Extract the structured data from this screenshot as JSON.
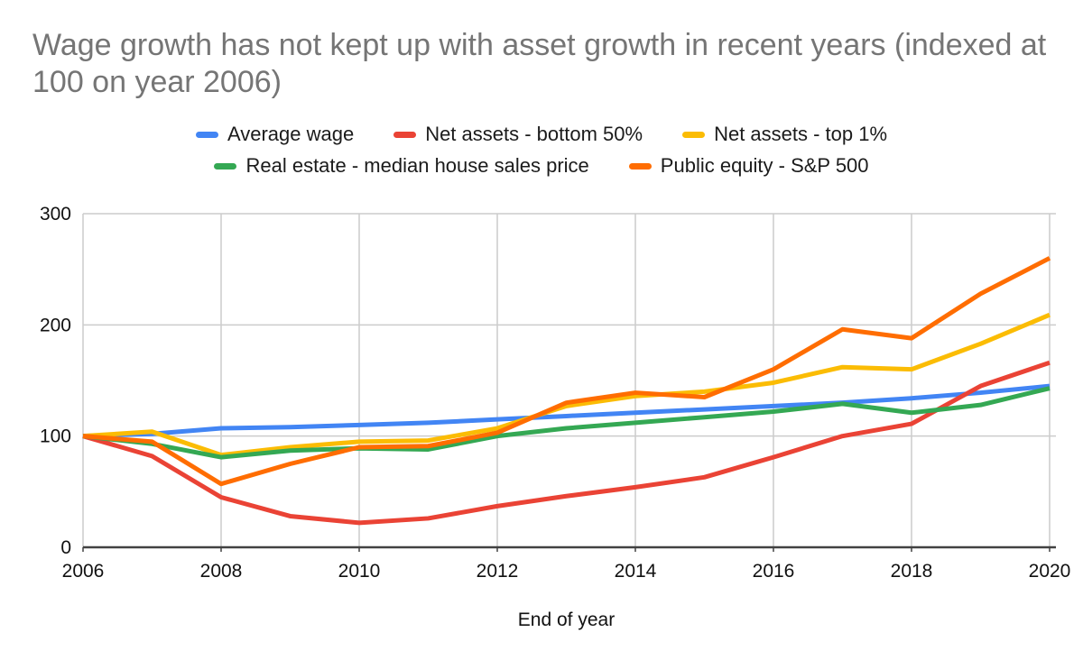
{
  "title": "Wage growth has not kept up with asset growth in recent years (indexed at 100 on year 2006)",
  "x_axis_title": "End of year",
  "chart_data": {
    "type": "line",
    "title": "Wage growth has not kept up with asset growth in recent years (indexed at 100 on year 2006)",
    "xlabel": "End of year",
    "ylabel": "",
    "xlim": [
      2006,
      2020
    ],
    "ylim": [
      0,
      300
    ],
    "grid": true,
    "legend_position": "top",
    "x": [
      2006,
      2007,
      2008,
      2009,
      2010,
      2011,
      2012,
      2013,
      2014,
      2015,
      2016,
      2017,
      2018,
      2019,
      2020
    ],
    "x_tick_labels": [
      "2006",
      "2008",
      "2010",
      "2012",
      "2014",
      "2016",
      "2018",
      "2020"
    ],
    "y_ticks": [
      0,
      100,
      200,
      300
    ],
    "series": [
      {
        "name": "Average wage",
        "color": "#4285F4",
        "values": [
          100,
          102,
          107,
          108,
          110,
          112,
          115,
          118,
          121,
          124,
          127,
          130,
          134,
          139,
          145
        ]
      },
      {
        "name": "Net assets - bottom 50%",
        "color": "#EA4335",
        "values": [
          100,
          82,
          45,
          28,
          22,
          26,
          37,
          46,
          54,
          63,
          81,
          100,
          111,
          145,
          166
        ]
      },
      {
        "name": "Net assets - top 1%",
        "color": "#FBBC04",
        "values": [
          100,
          104,
          83,
          90,
          95,
          96,
          107,
          127,
          136,
          140,
          148,
          162,
          160,
          183,
          209
        ]
      },
      {
        "name": "Real estate - median house sales price",
        "color": "#34A853",
        "values": [
          100,
          93,
          81,
          87,
          89,
          88,
          100,
          107,
          112,
          117,
          122,
          129,
          121,
          128,
          143
        ]
      },
      {
        "name": "Public equity - S&P 500",
        "color": "#FF6D01",
        "values": [
          100,
          95,
          57,
          75,
          90,
          91,
          103,
          130,
          139,
          135,
          160,
          196,
          188,
          228,
          260
        ]
      }
    ],
    "colors": {
      "title_text": "#757575",
      "axis_text": "#111111",
      "gridline": "#cccccc",
      "baseline": "#424242",
      "background": "#ffffff"
    }
  }
}
